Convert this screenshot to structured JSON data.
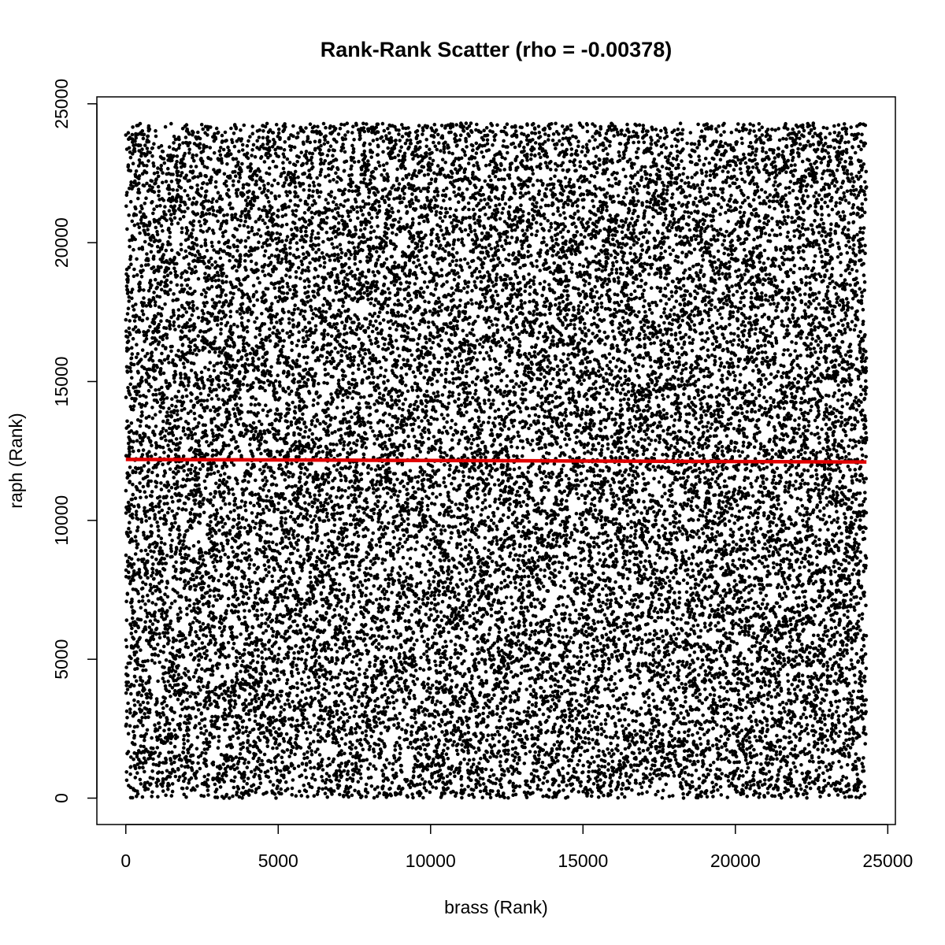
{
  "chart_data": {
    "type": "scatter",
    "title": "Rank-Rank Scatter (rho = -0.00378)",
    "xlabel": "brass (Rank)",
    "ylabel": "raph (Rank)",
    "xlim": [
      -950,
      25250
    ],
    "ylim": [
      -950,
      25250
    ],
    "x_ticks": [
      0,
      5000,
      10000,
      15000,
      20000,
      25000
    ],
    "y_ticks": [
      0,
      5000,
      10000,
      15000,
      20000,
      25000
    ],
    "x_tick_labels": [
      "0",
      "5000",
      "10000",
      "15000",
      "20000",
      "25000"
    ],
    "y_tick_labels": [
      "0",
      "5000",
      "10000",
      "15000",
      "20000",
      "25000"
    ],
    "n_points": 24300,
    "x_range": [
      1,
      24300
    ],
    "y_range": [
      1,
      24300
    ],
    "point_color": "#000000",
    "fit_line": {
      "color": "#e00000",
      "x": [
        1,
        24300
      ],
      "y": [
        12196,
        12104
      ]
    },
    "grid": false,
    "legend": "none"
  }
}
